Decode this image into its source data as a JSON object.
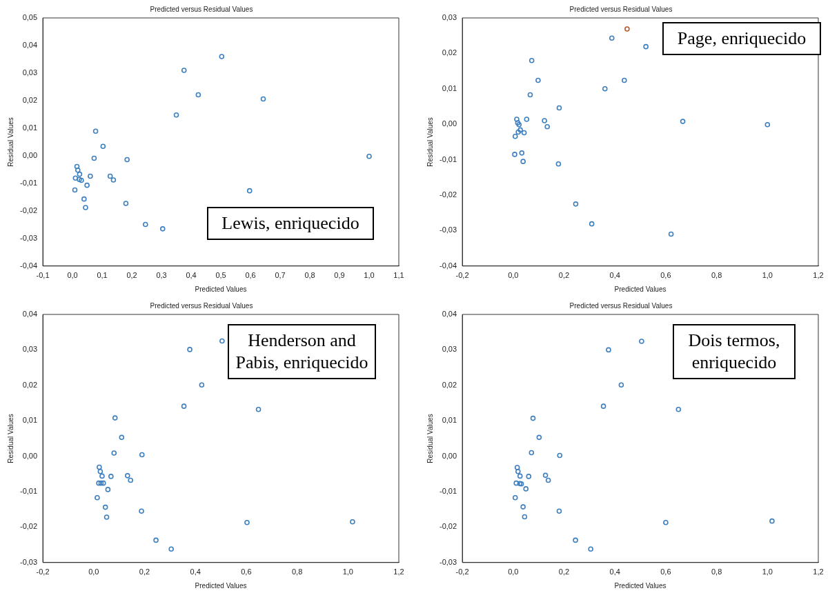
{
  "chart_data": [
    {
      "type": "scatter",
      "title": "Predicted versus Residual Values",
      "xlabel": "Predicted Values",
      "ylabel": "Residual Values",
      "annotations": [
        "Lewis, enriquecido"
      ],
      "marker": "circle",
      "xlim": [
        -0.1,
        1.1
      ],
      "xticks": [
        {
          "value": -0.1,
          "label": "-0,1"
        },
        {
          "value": 0,
          "label": "0,0"
        },
        {
          "value": 0.1,
          "label": "0,1"
        },
        {
          "value": 0.2,
          "label": "0,2"
        },
        {
          "value": 0.3,
          "label": "0,3"
        },
        {
          "value": 0.4,
          "label": "0,4"
        },
        {
          "value": 0.5,
          "label": "0,5"
        },
        {
          "value": 0.6,
          "label": "0,6"
        },
        {
          "value": 0.7,
          "label": "0,7"
        },
        {
          "value": 0.8,
          "label": "0,8"
        },
        {
          "value": 0.9,
          "label": "0,9"
        },
        {
          "value": 1.0,
          "label": "1,0"
        },
        {
          "value": 1.1,
          "label": "1,1"
        }
      ],
      "ylim": [
        -0.04,
        0.05
      ],
      "yticks": [
        {
          "value": -0.04,
          "label": "-0,04"
        },
        {
          "value": -0.03,
          "label": "-0,03"
        },
        {
          "value": -0.02,
          "label": "-0,02"
        },
        {
          "value": -0.01,
          "label": "-0,01"
        },
        {
          "value": 0,
          "label": "0,00"
        },
        {
          "value": 0.01,
          "label": "0,01"
        },
        {
          "value": 0.02,
          "label": "0,02"
        },
        {
          "value": 0.03,
          "label": "0,03"
        },
        {
          "value": 0.04,
          "label": "0,04"
        },
        {
          "value": 0.05,
          "label": "0,05"
        }
      ],
      "series": [
        {
          "color": "#3c7fc0",
          "x": [
            0.078,
            0.103,
            0.073,
            0.015,
            0.018,
            0.024,
            0.01,
            0.023,
            0.03,
            0.06,
            0.049,
            0.008,
            0.039,
            0.044,
            0.127,
            0.138,
            0.184,
            0.18,
            0.246,
            0.304,
            0.35,
            0.376,
            0.424,
            0.503,
            0.643,
            0.597,
            1.0
          ],
          "values": [
            0.0089,
            0.0034,
            -0.0009,
            -0.0039,
            -0.0052,
            -0.0067,
            -0.0081,
            -0.0086,
            -0.0089,
            -0.0074,
            -0.0107,
            -0.0124,
            -0.0157,
            -0.0188,
            -0.0074,
            -0.0088,
            -0.0014,
            -0.0173,
            -0.0249,
            -0.0265,
            0.0148,
            0.031,
            0.0221,
            0.036,
            0.0206,
            -0.0127,
            -0.0002
          ]
        }
      ]
    },
    {
      "type": "scatter",
      "title": "Predicted versus Residual Values",
      "xlabel": "Predicted Values",
      "ylabel": "Residual Values",
      "annotations": [
        "Page, enriquecido"
      ],
      "marker": "circle",
      "xlim": [
        -0.2,
        1.2
      ],
      "xticks": [
        {
          "value": -0.2,
          "label": "-0,2"
        },
        {
          "value": 0,
          "label": "0,0"
        },
        {
          "value": 0.2,
          "label": "0,2"
        },
        {
          "value": 0.4,
          "label": "0,4"
        },
        {
          "value": 0.6,
          "label": "0,6"
        },
        {
          "value": 0.8,
          "label": "0,8"
        },
        {
          "value": 1.0,
          "label": "1,0"
        },
        {
          "value": 1.2,
          "label": "1,2"
        }
      ],
      "ylim": [
        -0.04,
        0.03
      ],
      "yticks": [
        {
          "value": -0.04,
          "label": "-0,04"
        },
        {
          "value": -0.03,
          "label": "-0,03"
        },
        {
          "value": -0.02,
          "label": "-0,02"
        },
        {
          "value": -0.01,
          "label": "-0,01"
        },
        {
          "value": 0,
          "label": "0,00"
        },
        {
          "value": 0.01,
          "label": "0,01"
        },
        {
          "value": 0.02,
          "label": "0,02"
        },
        {
          "value": 0.03,
          "label": "0,03"
        }
      ],
      "series": [
        {
          "color": "#3c7fc0",
          "colors": [
            "#3c7fc0",
            "#3c7fc0",
            "#3c7fc0",
            "#3c7fc0",
            "#3c7fc0",
            "#3c7fc0",
            "#3c7fc0",
            "#3c7fc0",
            "#3c7fc0",
            "#3c7fc0",
            "#3c7fc0",
            "#3c7fc0",
            "#3c7fc0",
            "#3c7fc0",
            "#3c7fc0",
            "#3c7fc0",
            "#3c7fc0",
            "#3c7fc0",
            "#3c7fc0",
            "#3c7fc0",
            "#3c7fc0",
            "#3c7fc0",
            "#3c7fc0",
            "#b8552a",
            "#3c7fc0",
            "#3c7fc0",
            "#3c7fc0",
            "#3c7fc0"
          ],
          "x": [
            0.073,
            0.098,
            0.067,
            0.181,
            0.014,
            0.053,
            0.018,
            0.023,
            0.028,
            0.02,
            0.043,
            0.008,
            0.123,
            0.134,
            0.006,
            0.034,
            0.039,
            0.178,
            0.246,
            0.309,
            0.361,
            0.388,
            0.437,
            0.448,
            0.522,
            0.621,
            0.667,
            1.0
          ],
          "values": [
            0.018,
            0.0124,
            0.0083,
            0.0046,
            0.0014,
            0.0014,
            0.0004,
            -0.0001,
            -0.0016,
            -0.0022,
            -0.0024,
            -0.0034,
            0.001,
            -0.0007,
            -0.0085,
            -0.0081,
            -0.0105,
            -0.0112,
            -0.0225,
            -0.0281,
            0.01,
            0.0243,
            0.0124,
            0.0269,
            0.0219,
            -0.031,
            0.0008,
            -0.0001
          ]
        }
      ]
    },
    {
      "type": "scatter",
      "title": "Predicted versus Residual Values",
      "xlabel": "Predicted Values",
      "ylabel": "Residual Values",
      "annotations": [
        "Henderson and Pabis, enriquecido"
      ],
      "marker": "circle",
      "xlim": [
        -0.2,
        1.2
      ],
      "xticks": [
        {
          "value": -0.2,
          "label": "-0,2"
        },
        {
          "value": 0,
          "label": "0,0"
        },
        {
          "value": 0.2,
          "label": "0,2"
        },
        {
          "value": 0.4,
          "label": "0,4"
        },
        {
          "value": 0.6,
          "label": "0,6"
        },
        {
          "value": 0.8,
          "label": "0,8"
        },
        {
          "value": 1.0,
          "label": "1,0"
        },
        {
          "value": 1.2,
          "label": "1,2"
        }
      ],
      "ylim": [
        -0.03,
        0.04
      ],
      "yticks": [
        {
          "value": -0.03,
          "label": "-0,03"
        },
        {
          "value": -0.02,
          "label": "-0,02"
        },
        {
          "value": -0.01,
          "label": "-0,01"
        },
        {
          "value": 0,
          "label": "0,00"
        },
        {
          "value": 0.01,
          "label": "0,01"
        },
        {
          "value": 0.02,
          "label": "0,02"
        },
        {
          "value": 0.03,
          "label": "0,03"
        },
        {
          "value": 0.04,
          "label": "0,04"
        }
      ],
      "series": [
        {
          "color": "#3c7fc0",
          "x": [
            0.084,
            0.11,
            0.08,
            0.19,
            0.022,
            0.026,
            0.033,
            0.068,
            0.133,
            0.145,
            0.02,
            0.029,
            0.038,
            0.056,
            0.014,
            0.046,
            0.051,
            0.188,
            0.245,
            0.305,
            0.355,
            0.378,
            0.425,
            0.505,
            0.648,
            0.603,
            1.018
          ],
          "values": [
            0.0108,
            0.0053,
            0.0009,
            0.0004,
            -0.0031,
            -0.0043,
            -0.0056,
            -0.0057,
            -0.0055,
            -0.0068,
            -0.0076,
            -0.0076,
            -0.0076,
            -0.0094,
            -0.0117,
            -0.0144,
            -0.0172,
            -0.0155,
            -0.0237,
            -0.0262,
            0.0141,
            0.0301,
            0.0201,
            0.0325,
            0.0132,
            -0.0187,
            -0.0185
          ]
        }
      ]
    },
    {
      "type": "scatter",
      "title": "Predicted versus Residual Values",
      "xlabel": "Predicted Values",
      "ylabel": "Residual Values",
      "annotations": [
        "Dois termos, enriquecido"
      ],
      "marker": "circle",
      "xlim": [
        -0.2,
        1.2
      ],
      "xticks": [
        {
          "value": -0.2,
          "label": "-0,2"
        },
        {
          "value": 0,
          "label": "0,0"
        },
        {
          "value": 0.2,
          "label": "0,2"
        },
        {
          "value": 0.4,
          "label": "0,4"
        },
        {
          "value": 0.6,
          "label": "0,6"
        },
        {
          "value": 0.8,
          "label": "0,8"
        },
        {
          "value": 1.0,
          "label": "1,0"
        },
        {
          "value": 1.2,
          "label": "1,2"
        }
      ],
      "ylim": [
        -0.03,
        0.04
      ],
      "yticks": [
        {
          "value": -0.03,
          "label": "-0,03"
        },
        {
          "value": -0.02,
          "label": "-0,02"
        },
        {
          "value": -0.01,
          "label": "-0,01"
        },
        {
          "value": 0,
          "label": "0,00"
        },
        {
          "value": 0.01,
          "label": "0,01"
        },
        {
          "value": 0.02,
          "label": "0,02"
        },
        {
          "value": 0.03,
          "label": "0,03"
        },
        {
          "value": 0.04,
          "label": "0,04"
        }
      ],
      "series": [
        {
          "color": "#3c7fc0",
          "x": [
            0.078,
            0.102,
            0.072,
            0.183,
            0.016,
            0.019,
            0.027,
            0.061,
            0.127,
            0.138,
            0.012,
            0.026,
            0.032,
            0.05,
            0.008,
            0.039,
            0.045,
            0.181,
            0.245,
            0.305,
            0.355,
            0.375,
            0.425,
            0.505,
            0.65,
            0.6,
            1.018
          ],
          "values": [
            0.0107,
            0.0053,
            0.001,
            0.0002,
            -0.0032,
            -0.0043,
            -0.0056,
            -0.0057,
            -0.0054,
            -0.0068,
            -0.0076,
            -0.0077,
            -0.0078,
            -0.0092,
            -0.0117,
            -0.0143,
            -0.0171,
            -0.0155,
            -0.0237,
            -0.0262,
            0.0141,
            0.03,
            0.0201,
            0.0324,
            0.0132,
            -0.0187,
            -0.0183
          ]
        }
      ]
    }
  ]
}
